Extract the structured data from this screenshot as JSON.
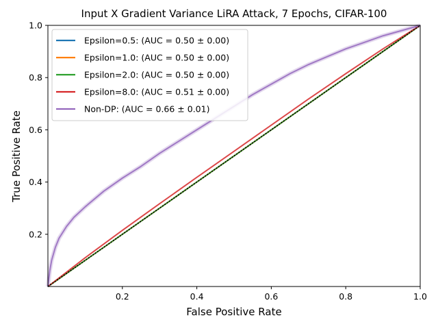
{
  "chart_data": {
    "type": "line",
    "title": "Input X Gradient Variance LiRA Attack, 7 Epochs, CIFAR-100",
    "xlabel": "False Positive Rate",
    "ylabel": "True Positive Rate",
    "xlim": [
      0,
      1
    ],
    "ylim": [
      0,
      1
    ],
    "xticks": [
      "0.2",
      "0.4",
      "0.6",
      "0.8",
      "1.0"
    ],
    "yticks": [
      "0.2",
      "0.4",
      "0.6",
      "0.8",
      "1.0"
    ],
    "grid": false,
    "legend_position": "top-left",
    "series": [
      {
        "name": "Epsilon=0.5: (AUC = 0.50 ± 0.00)",
        "color": "#1f77b4",
        "x": [
          0,
          0.2,
          0.4,
          0.6,
          0.8,
          1.0
        ],
        "y": [
          0,
          0.2,
          0.4,
          0.6,
          0.8,
          1.0
        ]
      },
      {
        "name": "Epsilon=1.0: (AUC = 0.50 ± 0.00)",
        "color": "#ff7f0e",
        "x": [
          0,
          0.2,
          0.4,
          0.6,
          0.8,
          1.0
        ],
        "y": [
          0,
          0.2,
          0.4,
          0.6,
          0.8,
          1.0
        ]
      },
      {
        "name": "Epsilon=2.0: (AUC = 0.50 ± 0.00)",
        "color": "#2ca02c",
        "x": [
          0,
          0.2,
          0.4,
          0.6,
          0.8,
          1.0
        ],
        "y": [
          0,
          0.2,
          0.4,
          0.6,
          0.8,
          1.0
        ]
      },
      {
        "name": "Epsilon=8.0: (AUC = 0.51 ± 0.00)",
        "color": "#d62728",
        "x": [
          0,
          0.1,
          0.2,
          0.3,
          0.4,
          0.5,
          0.6,
          0.7,
          0.8,
          0.9,
          1.0
        ],
        "y": [
          0,
          0.11,
          0.215,
          0.317,
          0.418,
          0.518,
          0.618,
          0.718,
          0.815,
          0.91,
          1.0
        ]
      },
      {
        "name": "Non-DP: (AUC = 0.66 ± 0.01)",
        "color": "#9467bd",
        "x": [
          0,
          0.005,
          0.01,
          0.02,
          0.03,
          0.05,
          0.07,
          0.1,
          0.15,
          0.2,
          0.25,
          0.3,
          0.35,
          0.4,
          0.45,
          0.5,
          0.55,
          0.6,
          0.65,
          0.7,
          0.75,
          0.8,
          0.85,
          0.9,
          0.95,
          1.0
        ],
        "y": [
          0,
          0.06,
          0.1,
          0.15,
          0.185,
          0.23,
          0.265,
          0.305,
          0.365,
          0.415,
          0.46,
          0.51,
          0.555,
          0.6,
          0.645,
          0.69,
          0.735,
          0.775,
          0.815,
          0.85,
          0.88,
          0.91,
          0.935,
          0.96,
          0.98,
          1.0
        ]
      }
    ],
    "reference_line": {
      "style": "dotted",
      "color": "#000000",
      "x": [
        0,
        1
      ],
      "y": [
        0,
        1
      ]
    }
  }
}
